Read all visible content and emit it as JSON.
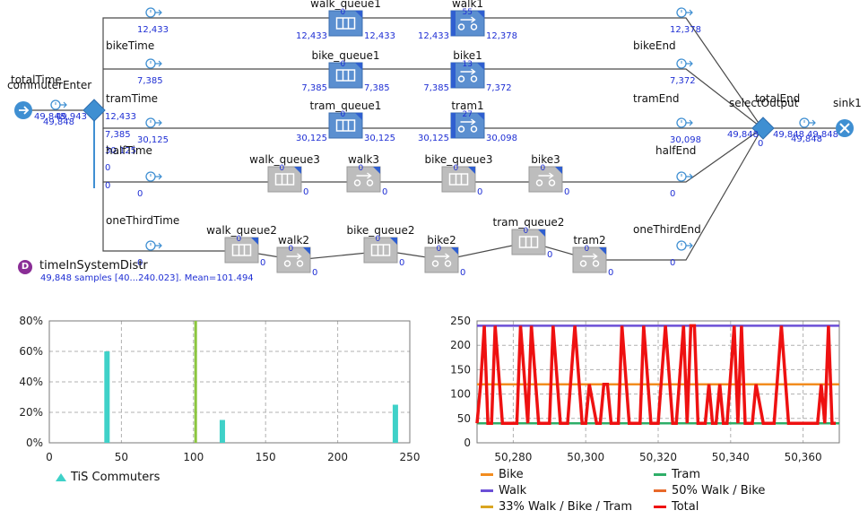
{
  "process": {
    "source": {
      "name": "commuterEnter"
    },
    "time_start": {
      "name": "totalTime"
    },
    "start_counts": {
      "left": "49,848",
      "right": "49,943",
      "below": "49,848"
    },
    "select": {
      "name": "selectOutput"
    },
    "time_end": {
      "name": "totalEnd"
    },
    "sink": {
      "name": "sink1"
    },
    "branch_counts": [
      "12,433",
      "7,385",
      "30,125",
      "0",
      "0"
    ],
    "select_out_count": "49,848",
    "select_out_below": "0",
    "end_counts": {
      "left": "49,848",
      "right": "49,848",
      "below": "49,848"
    },
    "routes": [
      {
        "label": "bikeTime",
        "start_count": "12,433",
        "blocks": [
          {
            "name": "walk_queue1",
            "kind": "queue",
            "active": true,
            "top": "0",
            "in": "12,433",
            "out": "12,433"
          },
          {
            "name": "walk1",
            "kind": "delay",
            "active": true,
            "top": "55",
            "in": "12,433",
            "out": "12,378"
          }
        ],
        "end_label": "bikeEnd",
        "end_count": "12,378"
      },
      {
        "label": "tramTime",
        "start_count": "7,385",
        "blocks": [
          {
            "name": "bike_queue1",
            "kind": "queue",
            "active": true,
            "top": "0",
            "in": "7,385",
            "out": "7,385"
          },
          {
            "name": "bike1",
            "kind": "delay",
            "active": true,
            "top": "13",
            "in": "7,385",
            "out": "7,372"
          }
        ],
        "end_label": "tramEnd",
        "end_count": "7,372"
      },
      {
        "label": "halfTime",
        "start_count": "30,125",
        "blocks": [
          {
            "name": "tram_queue1",
            "kind": "queue",
            "active": true,
            "top": "0",
            "in": "30,125",
            "out": "30,125"
          },
          {
            "name": "tram1",
            "kind": "delay",
            "active": true,
            "top": "27",
            "in": "30,125",
            "out": "30,098"
          }
        ],
        "end_label": "halfEnd",
        "end_count": "30,098"
      },
      {
        "label": "",
        "start_count": "0",
        "blocks": [
          {
            "name": "walk_queue3",
            "kind": "queue",
            "active": false,
            "top": "0",
            "in": "",
            "out": "0"
          },
          {
            "name": "walk3",
            "kind": "delay",
            "active": false,
            "top": "0",
            "in": "",
            "out": "0"
          },
          {
            "name": "bike_queue3",
            "kind": "queue",
            "active": false,
            "top": "0",
            "in": "",
            "out": "0"
          },
          {
            "name": "bike3",
            "kind": "delay",
            "active": false,
            "top": "0",
            "in": "",
            "out": "0"
          }
        ],
        "end_label": "",
        "end_count": "0"
      },
      {
        "label": "oneThirdTime",
        "start_count": "0",
        "blocks": [
          {
            "name": "walk_queue2",
            "kind": "queue",
            "active": false,
            "top": "0",
            "in": "",
            "out": "0"
          },
          {
            "name": "walk2",
            "kind": "delay",
            "active": false,
            "top": "0",
            "in": "",
            "out": "0"
          },
          {
            "name": "bike_queue2",
            "kind": "queue",
            "active": false,
            "top": "0",
            "in": "",
            "out": "0"
          },
          {
            "name": "bike2",
            "kind": "delay",
            "active": false,
            "top": "0",
            "in": "",
            "out": "0"
          },
          {
            "name": "tram_queue2",
            "kind": "queue",
            "active": false,
            "top": "0",
            "in": "",
            "out": "0"
          },
          {
            "name": "tram2",
            "kind": "delay",
            "active": false,
            "top": "0",
            "in": "",
            "out": "0"
          }
        ],
        "end_label": "oneThirdEnd",
        "end_count": "0"
      }
    ]
  },
  "distribution": {
    "name": "timeInSystemDistr",
    "summary": "49,848 samples [40...240.023]. Mean=101.494"
  },
  "colors": {
    "active_block": "#5b8fd0",
    "inactive_block": "#bdbdbd",
    "count_text": "#1f2fd4",
    "hist_bar": "#3fd1c8",
    "mean_line": "#8cc63f"
  },
  "chart_data": [
    {
      "type": "bar",
      "title": "",
      "x": [
        40,
        100,
        120,
        240
      ],
      "values": [
        0.6,
        0.8,
        0.15,
        0.25
      ],
      "mean": 101.494,
      "xlim": [
        0,
        250
      ],
      "ylim": [
        0,
        0.8
      ],
      "x_ticks": [
        "0",
        "50",
        "100",
        "150",
        "200",
        "250"
      ],
      "y_ticks": [
        "0%",
        "20%",
        "40%",
        "60%",
        "80%"
      ],
      "grid": true,
      "legend": [
        {
          "name": "TiS Commuters",
          "color": "#3fd1c8"
        }
      ],
      "legend_position": "bottom-left"
    },
    {
      "type": "line",
      "xlim": [
        50270,
        50370
      ],
      "ylim": [
        0,
        250
      ],
      "x_ticks": [
        "50,280",
        "50,300",
        "50,320",
        "50,340",
        "50,360"
      ],
      "y_ticks": [
        "0",
        "50",
        "100",
        "150",
        "200",
        "250"
      ],
      "grid": true,
      "legend_position": "bottom",
      "series": [
        {
          "name": "Bike",
          "color": "#f28c1f",
          "x": [
            50270,
            50370
          ],
          "y": [
            120,
            120
          ]
        },
        {
          "name": "Tram",
          "color": "#2fae68",
          "x": [
            50270,
            50370
          ],
          "y": [
            40,
            40
          ]
        },
        {
          "name": "Walk",
          "color": "#6b4fd6",
          "x": [
            50270,
            50370
          ],
          "y": [
            240,
            240
          ]
        },
        {
          "name": "50% Walk / Bike",
          "color": "#e8692a",
          "x": [],
          "y": []
        },
        {
          "name": "33% Walk / Bike / Tram",
          "color": "#d9a520",
          "x": [],
          "y": []
        },
        {
          "name": "Total",
          "color": "#ee1111",
          "x": [
            50270,
            50271,
            50272,
            50273,
            50274,
            50275,
            50277,
            50279,
            50281,
            50282,
            50284,
            50285,
            50287,
            50289,
            50290,
            50291,
            50293,
            50295,
            50297,
            50299,
            50300,
            50301,
            50303,
            50304,
            50305,
            50306,
            50307,
            50308,
            50309,
            50310,
            50312,
            50313,
            50315,
            50316,
            50318,
            50320,
            50322,
            50324,
            50325,
            50327,
            50328,
            50329,
            50330,
            50331,
            50332,
            50333,
            50334,
            50335,
            50336,
            50337,
            50338,
            50339,
            50341,
            50342,
            50343,
            50344,
            50346,
            50347,
            50349,
            50350,
            50352,
            50354,
            50356,
            50357,
            50358,
            50359,
            50360,
            50361,
            50362,
            50363,
            50364,
            50365,
            50366,
            50367,
            50368,
            50369
          ],
          "y": [
            40,
            120,
            240,
            40,
            40,
            240,
            40,
            40,
            40,
            240,
            40,
            240,
            40,
            40,
            40,
            240,
            40,
            40,
            240,
            40,
            40,
            120,
            40,
            40,
            120,
            120,
            40,
            40,
            40,
            240,
            40,
            40,
            40,
            240,
            40,
            40,
            240,
            40,
            40,
            240,
            40,
            240,
            240,
            40,
            40,
            40,
            120,
            40,
            40,
            120,
            40,
            40,
            240,
            40,
            240,
            40,
            40,
            120,
            40,
            40,
            40,
            240,
            40,
            40,
            40,
            40,
            40,
            40,
            40,
            40,
            40,
            120,
            40,
            240,
            40,
            40
          ]
        }
      ]
    }
  ]
}
